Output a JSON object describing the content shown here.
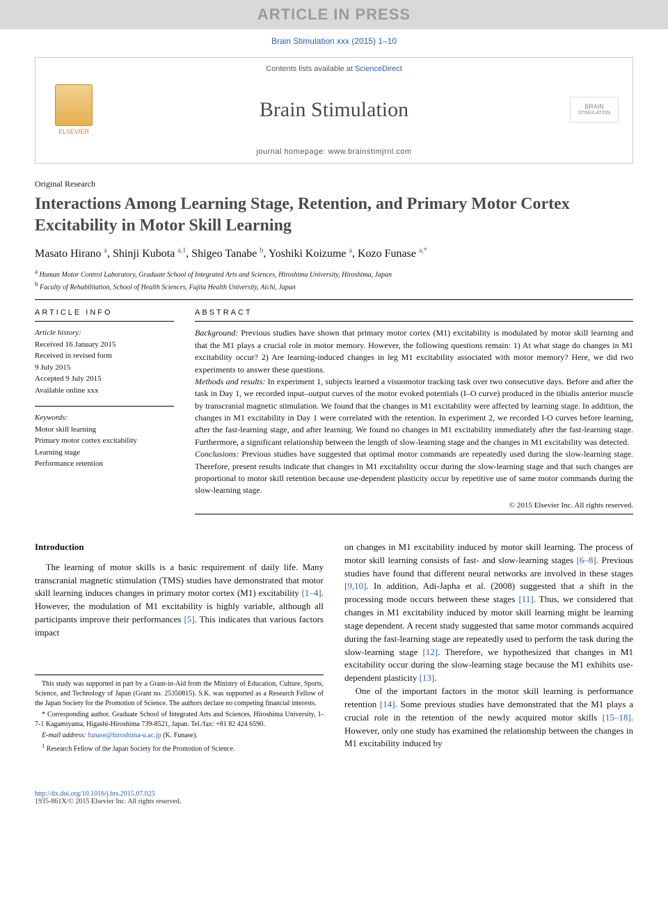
{
  "banner": "ARTICLE IN PRESS",
  "citation": "Brain Stimulation xxx (2015) 1–10",
  "header": {
    "contents_prefix": "Contents lists available at ",
    "contents_link": "ScienceDirect",
    "journal": "Brain Stimulation",
    "homepage_label": "journal homepage: ",
    "homepage_url": "www.brainstimjrnl.com",
    "elsevier_label": "ELSEVIER",
    "brain_logo_line1": "BRAIN",
    "brain_logo_line2": "STIMULATION"
  },
  "article_type": "Original Research",
  "title": "Interactions Among Learning Stage, Retention, and Primary Motor Cortex Excitability in Motor Skill Learning",
  "authors": [
    {
      "name": "Masato Hirano",
      "sup": "a"
    },
    {
      "name": "Shinji Kubota",
      "sup": "a,1"
    },
    {
      "name": "Shigeo Tanabe",
      "sup": "b"
    },
    {
      "name": "Yoshiki Koizume",
      "sup": "a"
    },
    {
      "name": "Kozo Funase",
      "sup": "a,*"
    }
  ],
  "affiliations": [
    {
      "sup": "a",
      "text": "Human Motor Control Laboratory, Graduate School of Integrated Arts and Sciences, Hiroshima University, Hiroshima, Japan"
    },
    {
      "sup": "b",
      "text": "Faculty of Rehabilitation, School of Health Sciences, Fujita Health University, Aichi, Japan"
    }
  ],
  "meta": {
    "info_head": "ARTICLE INFO",
    "history_label": "Article history:",
    "history": [
      "Received 16 January 2015",
      "Received in revised form",
      "9 July 2015",
      "Accepted 9 July 2015",
      "Available online xxx"
    ],
    "keywords_label": "Keywords:",
    "keywords": [
      "Motor skill learning",
      "Primary motor cortex excitability",
      "Learning stage",
      "Performance retention"
    ]
  },
  "abstract_head": "ABSTRACT",
  "abstract": {
    "background_label": "Background:",
    "background": " Previous studies have shown that primary motor cortex (M1) excitability is modulated by motor skill learning and that the M1 plays a crucial role in motor memory. However, the following questions remain: 1) At what stage do changes in M1 excitability occur? 2) Are learning-induced changes in leg M1 excitability associated with motor memory? Here, we did two experiments to answer these questions.",
    "methods_label": "Methods and results:",
    "methods": " In experiment 1, subjects learned a visuomotor tracking task over two consecutive days. Before and after the task in Day 1, we recorded input–output curves of the motor evoked potentials (I–O curve) produced in the tibialis anterior muscle by transcranial magnetic stimulation. We found that the changes in M1 excitability were affected by learning stage. In addition, the changes in M1 excitability in Day 1 were correlated with the retention. In experiment 2, we recorded I-O curves before learning, after the fast-learning stage, and after learning. We found no changes in M1 excitability immediately after the fast-learning stage. Furthermore, a significant relationship between the length of slow-learning stage and the changes in M1 excitability was detected.",
    "conclusions_label": "Conclusions:",
    "conclusions": " Previous studies have suggested that optimal motor commands are repeatedly used during the slow-learning stage. Therefore, present results indicate that changes in M1 excitability occur during the slow-learning stage and that such changes are proportional to motor skill retention because use-dependent plasticity occur by repetitive use of same motor commands during the slow-learning stage."
  },
  "copyright": "© 2015 Elsevier Inc. All rights reserved.",
  "intro_head": "Introduction",
  "body": {
    "col1_p1_a": "The learning of motor skills is a basic requirement of daily life. Many transcranial magnetic stimulation (TMS) studies have demonstrated that motor skill learning induces changes in primary motor cortex (M1) excitability ",
    "col1_ref1": "[1–4]",
    "col1_p1_b": ". However, the modulation of M1 excitability is highly variable, although all participants improve their performances ",
    "col1_ref2": "[5]",
    "col1_p1_c": ". This indicates that various factors impact",
    "col2_p1_a": "on changes in M1 excitability induced by motor skill learning. The process of motor skill learning consists of fast- and slow-learning stages ",
    "col2_ref1": "[6–8]",
    "col2_p1_b": ". Previous studies have found that different neural networks are involved in these stages ",
    "col2_ref2": "[9,10]",
    "col2_p1_c": ". In addition, Adi-Japha et al. (2008) suggested that a shift in the processing mode occurs between these stages ",
    "col2_ref3": "[11]",
    "col2_p1_d": ". Thus, we considered that changes in M1 excitability induced by motor skill learning might be learning stage dependent. A recent study suggested that same motor commands acquired during the fast-learning stage are repeatedly used to perform the task during the slow-learning stage ",
    "col2_ref4": "[12]",
    "col2_p1_e": ". Therefore, we hypothesized that changes in M1 excitability occur during the slow-learning stage because the M1 exhibits use-dependent plasticity ",
    "col2_ref5": "[13]",
    "col2_p1_f": ".",
    "col2_p2_a": "One of the important factors in the motor skill learning is performance retention ",
    "col2_ref6": "[14]",
    "col2_p2_b": ". Some previous studies have demonstrated that the M1 plays a crucial role in the retention of the newly acquired motor skills ",
    "col2_ref7": "[15–18]",
    "col2_p2_c": ". However, only one study has examined the relationship between the changes in M1 excitability induced by"
  },
  "footnotes": {
    "funding": "This study was supported in part by a Grant-in-Aid from the Ministry of Education, Culture, Sports, Science, and Technology of Japan (Grant no. 25350815). S.K. was supported as a Research Fellow of the Japan Society for the Promotion of Science. The authors declare no competing financial interests.",
    "corr_label": "* Corresponding author. ",
    "corr": "Graduate School of Integrated Arts and Sciences, Hiroshima University, 1-7-1 Kagamiyama, Higashi-Hiroshima 739-8521, Japan. Tel./fax: +81 82 424 6590.",
    "email_label": "E-mail address: ",
    "email": "funase@hiroshima-u.ac.jp",
    "email_suffix": " (K. Funase).",
    "note1": "Research Fellow of the Japan Society for the Promotion of Science.",
    "note1_sup": "1"
  },
  "footer": {
    "doi": "http://dx.doi.org/10.1016/j.brs.2015.07.025",
    "issn": "1935-861X/© 2015 Elsevier Inc. All rights reserved."
  },
  "colors": {
    "banner_bg": "#d9d9d9",
    "banner_text": "#9b9b9b",
    "link": "#2a5db0",
    "elsevier_orange": "#e67817",
    "title_gray": "#4a4a4a"
  }
}
